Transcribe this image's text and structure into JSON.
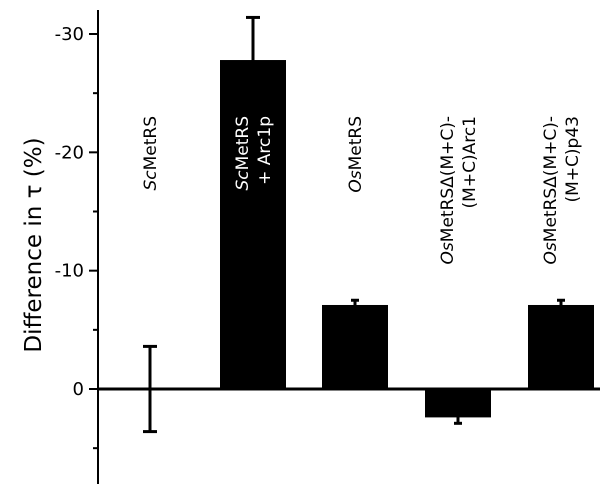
{
  "chart_data": {
    "type": "bar",
    "ylabel": "Difference in τ (%)",
    "ylim": [
      6,
      -31
    ],
    "y_ticks": [
      -30,
      -20,
      -10,
      0
    ],
    "y_tick_labels": [
      "-30",
      "-20",
      "-10",
      "0"
    ],
    "colors": {
      "bar": "#000000",
      "label_on_bar": "#ffffff",
      "label": "#000000"
    },
    "categories": [
      {
        "lines": [
          [
            {
              "t": "Sc",
              "i": true
            },
            {
              "t": "MetRS",
              "i": false
            }
          ]
        ]
      },
      {
        "lines": [
          [
            {
              "t": "Sc",
              "i": true
            },
            {
              "t": "MetRS",
              "i": false
            }
          ],
          [
            {
              "t": "+ Arc1p",
              "i": false
            }
          ]
        ]
      },
      {
        "lines": [
          [
            {
              "t": "Os",
              "i": true
            },
            {
              "t": "MetRS",
              "i": false
            }
          ]
        ]
      },
      {
        "lines": [
          [
            {
              "t": "Os",
              "i": true
            },
            {
              "t": "MetRSΔ(M+C)-",
              "i": false
            }
          ],
          [
            {
              "t": "(M+C)Arc1",
              "i": false
            }
          ]
        ]
      },
      {
        "lines": [
          [
            {
              "t": "Os",
              "i": true
            },
            {
              "t": "MetRSΔ(M+C)-",
              "i": false
            }
          ],
          [
            {
              "t": "(M+C)p43",
              "i": false
            }
          ]
        ]
      }
    ],
    "values": [
      0,
      -27.8,
      -7.1,
      2.4,
      -7.1
    ],
    "errors": [
      3.6,
      3.6,
      0.4,
      0.5,
      0.4
    ]
  }
}
